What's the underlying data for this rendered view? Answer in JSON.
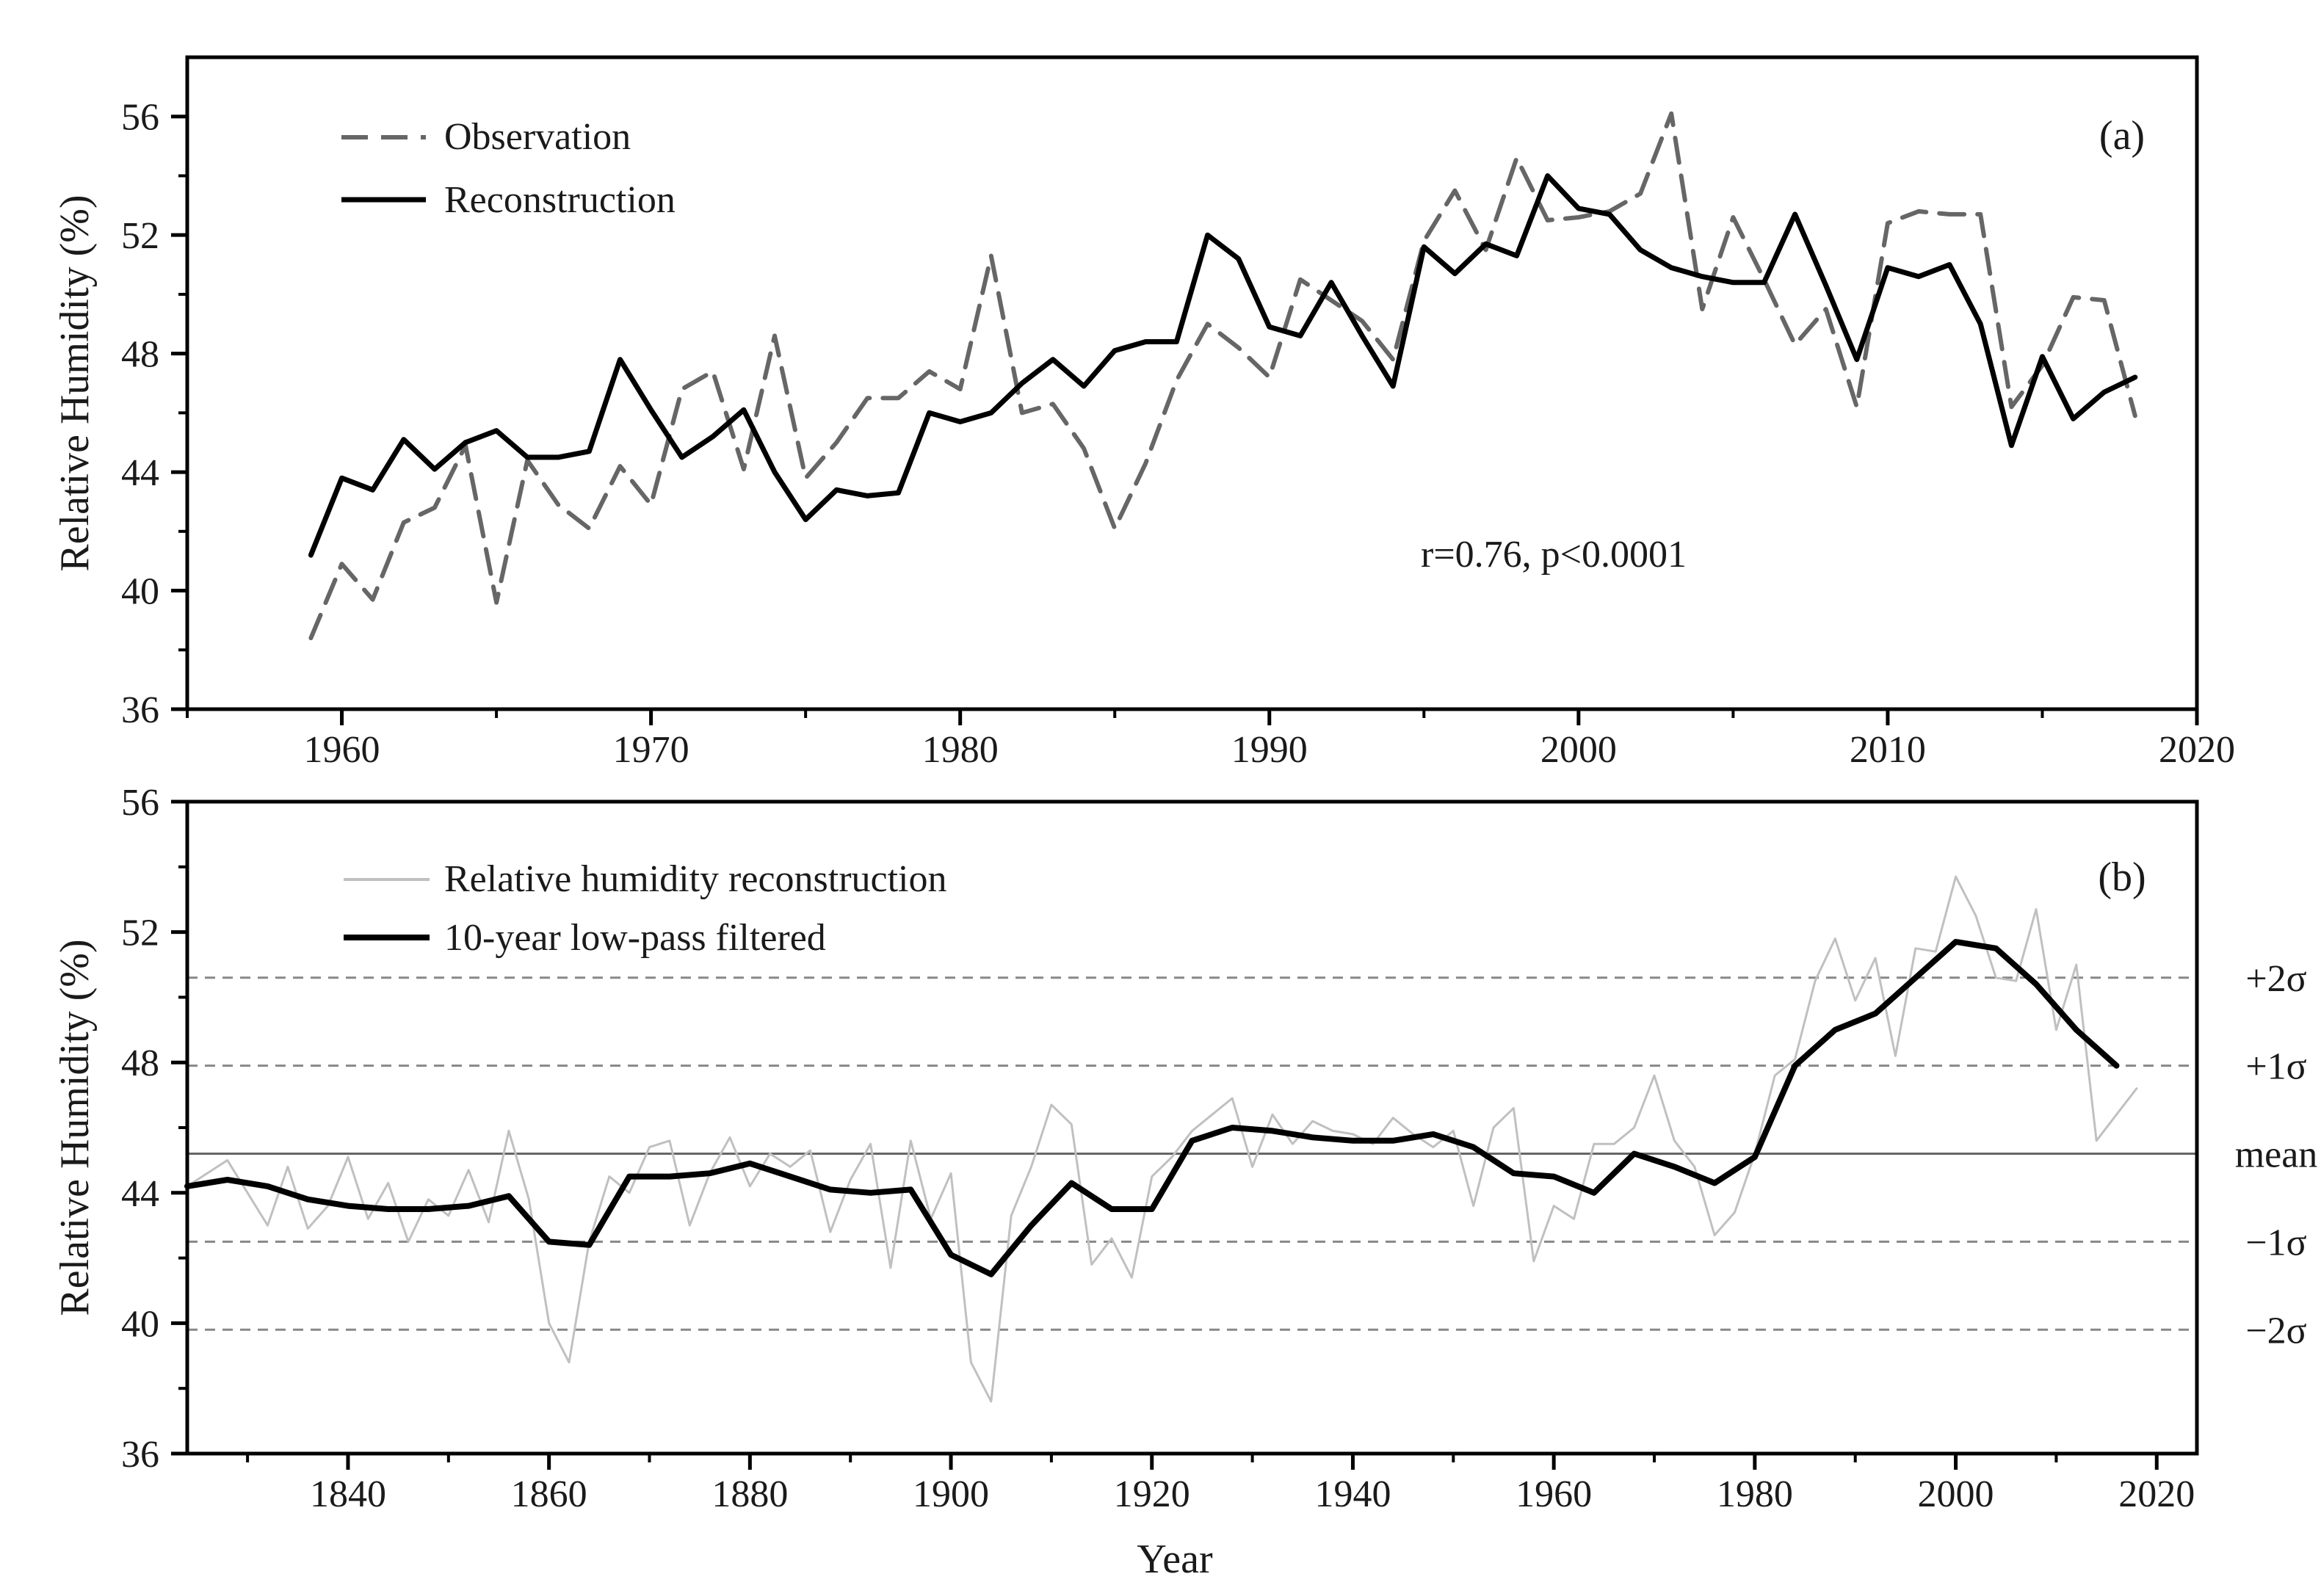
{
  "chart_data": [
    {
      "panel": "a",
      "type": "line",
      "panel_label": "(a)",
      "ylabel": "Relative Humidity (%)",
      "xlabel": "",
      "xlim": [
        1955,
        2020
      ],
      "ylim": [
        36,
        58
      ],
      "xticks": [
        1960,
        1970,
        1980,
        1990,
        2000,
        2010,
        2020
      ],
      "yticks": [
        36,
        40,
        44,
        48,
        52,
        56
      ],
      "annotation": "r=0.76, p<0.0001",
      "legend_position": "top-left",
      "series": [
        {
          "name": "Observation",
          "style": "dashed",
          "color": "#666666",
          "x": [
            1959,
            1960,
            1961,
            1962,
            1963,
            1964,
            1965,
            1966,
            1967,
            1968,
            1969,
            1970,
            1971,
            1972,
            1973,
            1974,
            1975,
            1976,
            1977,
            1978,
            1979,
            1980,
            1981,
            1982,
            1983,
            1984,
            1985,
            1986,
            1987,
            1988,
            1989,
            1990,
            1991,
            1992,
            1993,
            1994,
            1995,
            1996,
            1997,
            1998,
            1999,
            2000,
            2001,
            2002,
            2003,
            2004,
            2005,
            2006,
            2007,
            2008,
            2009,
            2010,
            2011,
            2012,
            2013,
            2014,
            2015,
            2016,
            2017,
            2018
          ],
          "y": [
            38.4,
            40.9,
            39.7,
            42.3,
            42.8,
            44.9,
            39.6,
            44.4,
            42.9,
            42.1,
            44.2,
            42.9,
            46.8,
            47.4,
            44.1,
            48.6,
            43.8,
            45.0,
            46.5,
            46.5,
            47.4,
            46.8,
            51.3,
            46.0,
            46.3,
            44.8,
            42.1,
            44.3,
            47.1,
            49.0,
            48.2,
            47.2,
            50.5,
            49.8,
            49.1,
            47.8,
            51.8,
            53.5,
            51.5,
            54.6,
            52.5,
            52.6,
            52.8,
            53.4,
            56.1,
            49.5,
            52.6,
            50.5,
            48.3,
            49.5,
            46.2,
            52.4,
            52.8,
            52.7,
            52.7,
            46.2,
            47.6,
            49.9,
            49.8,
            45.9
          ]
        },
        {
          "name": "Reconstruction",
          "style": "solid",
          "color": "#000000",
          "x": [
            1959,
            1960,
            1961,
            1962,
            1963,
            1964,
            1965,
            1966,
            1967,
            1968,
            1969,
            1970,
            1971,
            1972,
            1973,
            1974,
            1975,
            1976,
            1977,
            1978,
            1979,
            1980,
            1981,
            1982,
            1983,
            1984,
            1985,
            1986,
            1987,
            1988,
            1989,
            1990,
            1991,
            1992,
            1993,
            1994,
            1995,
            1996,
            1997,
            1998,
            1999,
            2000,
            2001,
            2002,
            2003,
            2004,
            2005,
            2006,
            2007,
            2008,
            2009,
            2010,
            2011,
            2012,
            2013,
            2014,
            2015,
            2016,
            2017,
            2018
          ],
          "y": [
            41.2,
            43.8,
            43.4,
            45.1,
            44.1,
            45.0,
            45.4,
            44.5,
            44.5,
            44.7,
            47.8,
            46.1,
            44.5,
            45.2,
            46.1,
            44.0,
            42.4,
            43.4,
            43.2,
            43.3,
            46.0,
            45.7,
            46.0,
            47.0,
            47.8,
            46.9,
            48.1,
            48.4,
            48.4,
            52.0,
            51.2,
            48.9,
            48.6,
            50.4,
            48.6,
            46.9,
            51.6,
            50.7,
            51.7,
            51.3,
            54.0,
            52.9,
            52.7,
            51.5,
            50.9,
            50.6,
            50.4,
            50.4,
            52.7,
            50.3,
            47.8,
            50.9,
            50.6,
            51.0,
            49.0,
            44.9,
            47.9,
            45.8,
            46.7,
            47.2
          ]
        }
      ]
    },
    {
      "panel": "b",
      "type": "line",
      "panel_label": "(b)",
      "ylabel": "Relative Humidity (%)",
      "xlabel": "Year",
      "xlim": [
        1824,
        2024
      ],
      "ylim": [
        36,
        56
      ],
      "xticks": [
        1840,
        1860,
        1880,
        1900,
        1920,
        1940,
        1960,
        1980,
        2000,
        2020
      ],
      "yticks": [
        36,
        40,
        44,
        48,
        52,
        56
      ],
      "legend_position": "top-left",
      "reference_lines": [
        {
          "label": "+2σ",
          "value": 50.6,
          "style": "dashed"
        },
        {
          "label": "+1σ",
          "value": 47.9,
          "style": "dashed"
        },
        {
          "label": "mean",
          "value": 45.2,
          "style": "solid"
        },
        {
          "label": "−1σ",
          "value": 42.5,
          "style": "dashed"
        },
        {
          "label": "−2σ",
          "value": 39.8,
          "style": "dashed"
        }
      ],
      "series": [
        {
          "name": "Relative humidity reconstruction",
          "style": "solid",
          "color": "#c0c0c0",
          "x": [
            1824,
            1828,
            1832,
            1834,
            1836,
            1838,
            1840,
            1842,
            1844,
            1846,
            1848,
            1850,
            1852,
            1854,
            1856,
            1858,
            1860,
            1862,
            1864,
            1866,
            1868,
            1870,
            1872,
            1874,
            1876,
            1878,
            1880,
            1882,
            1884,
            1886,
            1888,
            1890,
            1892,
            1894,
            1896,
            1898,
            1900,
            1902,
            1904,
            1906,
            1908,
            1910,
            1912,
            1914,
            1916,
            1918,
            1920,
            1922,
            1924,
            1926,
            1928,
            1930,
            1932,
            1934,
            1936,
            1938,
            1940,
            1942,
            1944,
            1946,
            1948,
            1950,
            1952,
            1954,
            1956,
            1958,
            1960,
            1962,
            1964,
            1966,
            1968,
            1970,
            1972,
            1974,
            1976,
            1978,
            1980,
            1982,
            1984,
            1986,
            1988,
            1990,
            1992,
            1994,
            1996,
            1998,
            2000,
            2002,
            2004,
            2006,
            2008,
            2010,
            2012,
            2014,
            2016,
            2018
          ],
          "y": [
            44.2,
            45.0,
            43.0,
            44.8,
            42.9,
            43.6,
            45.1,
            43.2,
            44.3,
            42.5,
            43.8,
            43.3,
            44.7,
            43.1,
            45.9,
            43.8,
            40.0,
            38.8,
            42.5,
            44.5,
            44.0,
            45.4,
            45.6,
            43.0,
            44.6,
            45.7,
            44.2,
            45.2,
            44.8,
            45.3,
            42.8,
            44.4,
            45.5,
            41.7,
            45.6,
            43.2,
            44.6,
            38.8,
            37.6,
            43.3,
            44.8,
            46.7,
            46.1,
            41.8,
            42.6,
            41.4,
            44.5,
            45.1,
            45.9,
            46.4,
            46.9,
            44.8,
            46.4,
            45.5,
            46.2,
            45.9,
            45.8,
            45.5,
            46.3,
            45.8,
            45.4,
            45.9,
            43.6,
            46.0,
            46.6,
            41.9,
            43.6,
            43.2,
            45.5,
            45.5,
            46.0,
            47.6,
            45.6,
            44.8,
            42.7,
            43.4,
            45.2,
            47.6,
            48.1,
            50.5,
            51.8,
            49.9,
            51.2,
            48.2,
            51.5,
            51.4,
            53.7,
            52.5,
            50.6,
            50.5,
            52.7,
            49.0,
            51.0,
            45.6,
            46.4,
            47.2
          ]
        },
        {
          "name": "10-year low-pass filtered",
          "style": "solid",
          "color": "#000000",
          "x": [
            1824,
            1828,
            1832,
            1836,
            1840,
            1844,
            1848,
            1852,
            1856,
            1860,
            1864,
            1868,
            1872,
            1876,
            1880,
            1884,
            1888,
            1892,
            1896,
            1900,
            1904,
            1908,
            1912,
            1916,
            1920,
            1924,
            1928,
            1932,
            1936,
            1940,
            1944,
            1948,
            1952,
            1956,
            1960,
            1964,
            1968,
            1972,
            1976,
            1980,
            1984,
            1988,
            1992,
            1996,
            2000,
            2004,
            2008,
            2012,
            2016
          ],
          "y": [
            44.2,
            44.4,
            44.2,
            43.8,
            43.6,
            43.5,
            43.5,
            43.6,
            43.9,
            42.5,
            42.4,
            44.5,
            44.5,
            44.6,
            44.9,
            44.5,
            44.1,
            44.0,
            44.1,
            42.1,
            41.5,
            43.0,
            44.3,
            43.5,
            43.5,
            45.6,
            46.0,
            45.9,
            45.7,
            45.6,
            45.6,
            45.8,
            45.4,
            44.6,
            44.5,
            44.0,
            45.2,
            44.8,
            44.3,
            45.1,
            47.9,
            49.0,
            49.5,
            50.6,
            51.7,
            51.5,
            50.4,
            49.0,
            47.9
          ]
        }
      ]
    }
  ]
}
